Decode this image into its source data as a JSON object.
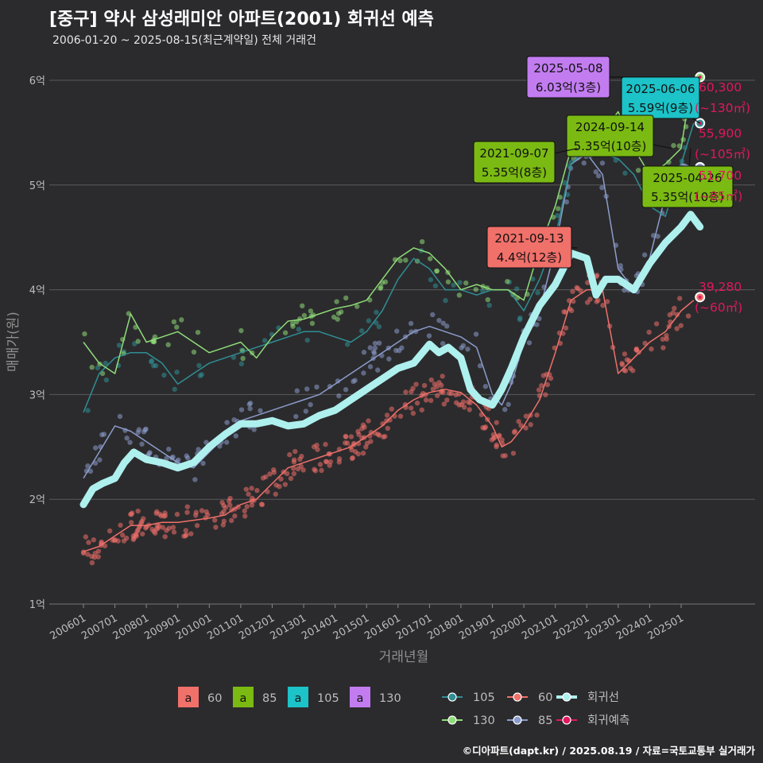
{
  "header": {
    "title": "[중구] 약사 삼성래미안 아파트(2001) 회귀선 예측",
    "subtitle": "2006-01-20 ~ 2025-08-15(최근계약일) 전체 거래건",
    "caption": "©디아파트(dapt.kr) / 2025.08.19 / 자료=국토교통부 실거래가"
  },
  "colors": {
    "background": "#2b2b2d",
    "grid": "#5a5a5a",
    "s60": "#f0706a",
    "s85": "#8c9ccc",
    "s105": "#2f8f94",
    "s130": "#8fdc78",
    "regression": "#aef0ee",
    "forecast": "#e0185c"
  },
  "chart_data": {
    "type": "scatter",
    "title": "[중구] 약사 삼성래미안 아파트(2001) 회귀선 예측",
    "xlabel": "거래년월",
    "ylabel": "매매가(원)",
    "xlim": [
      2005.6,
      2026.5
    ],
    "ylim": [
      1,
      6.25
    ],
    "y_ticks": [
      {
        "v": 1,
        "label": "1억"
      },
      {
        "v": 2,
        "label": "2억"
      },
      {
        "v": 3,
        "label": "3억"
      },
      {
        "v": 4,
        "label": "4억"
      },
      {
        "v": 5,
        "label": "5억"
      },
      {
        "v": 6,
        "label": "6억"
      }
    ],
    "x_ticks": [
      {
        "v": 2006,
        "label": "200601"
      },
      {
        "v": 2007,
        "label": "200701"
      },
      {
        "v": 2008,
        "label": "200801"
      },
      {
        "v": 2009,
        "label": "200901"
      },
      {
        "v": 2010,
        "label": "201001"
      },
      {
        "v": 2011,
        "label": "201101"
      },
      {
        "v": 2012,
        "label": "201201"
      },
      {
        "v": 2013,
        "label": "201301"
      },
      {
        "v": 2014,
        "label": "201401"
      },
      {
        "v": 2015,
        "label": "201501"
      },
      {
        "v": 2016,
        "label": "201601"
      },
      {
        "v": 2017,
        "label": "201701"
      },
      {
        "v": 2018,
        "label": "201801"
      },
      {
        "v": 2019,
        "label": "201901"
      },
      {
        "v": 2020,
        "label": "202001"
      },
      {
        "v": 2021,
        "label": "202101"
      },
      {
        "v": 2022,
        "label": "202201"
      },
      {
        "v": 2023,
        "label": "202301"
      },
      {
        "v": 2024,
        "label": "202401"
      },
      {
        "v": 2025,
        "label": "202501"
      }
    ],
    "grid": true,
    "series": [
      {
        "name": "60",
        "key": "s60",
        "color": "#f0706a",
        "x": [
          2006.0,
          2006.5,
          2007.0,
          2007.5,
          2008.0,
          2008.5,
          2009.0,
          2009.5,
          2010.0,
          2010.5,
          2011.0,
          2011.5,
          2012.0,
          2012.5,
          2013.0,
          2013.5,
          2014.0,
          2014.5,
          2015.0,
          2015.5,
          2016.0,
          2016.5,
          2017.0,
          2017.5,
          2018.0,
          2018.5,
          2019.0,
          2019.3,
          2019.6,
          2020.0,
          2020.5,
          2021.0,
          2021.5,
          2022.0,
          2022.5,
          2023.0,
          2023.5,
          2024.0,
          2024.5,
          2025.0,
          2025.4
        ],
        "y": [
          1.5,
          1.55,
          1.65,
          1.75,
          1.75,
          1.78,
          1.78,
          1.8,
          1.82,
          1.85,
          1.95,
          2.0,
          2.15,
          2.3,
          2.35,
          2.4,
          2.45,
          2.5,
          2.6,
          2.7,
          2.85,
          2.95,
          3.02,
          3.05,
          3.02,
          2.9,
          2.7,
          2.5,
          2.55,
          2.7,
          2.95,
          3.4,
          3.9,
          4.0,
          4.0,
          3.2,
          3.35,
          3.5,
          3.6,
          3.8,
          3.9
        ]
      },
      {
        "name": "85",
        "key": "s85",
        "color": "#8c9ccc",
        "x": [
          2006.0,
          2006.5,
          2007.0,
          2007.5,
          2008.0,
          2008.5,
          2009.0,
          2009.5,
          2010.0,
          2010.5,
          2011.0,
          2011.5,
          2012.0,
          2012.5,
          2013.0,
          2013.5,
          2014.0,
          2014.5,
          2015.0,
          2015.5,
          2016.0,
          2016.5,
          2017.0,
          2017.5,
          2018.0,
          2018.5,
          2019.0,
          2019.3,
          2019.6,
          2020.0,
          2020.5,
          2021.0,
          2021.5,
          2022.0,
          2022.5,
          2023.0,
          2023.5,
          2024.0,
          2024.5,
          2025.0,
          2025.4
        ],
        "y": [
          2.2,
          2.45,
          2.7,
          2.65,
          2.55,
          2.45,
          2.35,
          2.3,
          2.45,
          2.6,
          2.75,
          2.8,
          2.85,
          2.9,
          2.95,
          3.0,
          3.1,
          3.2,
          3.3,
          3.4,
          3.5,
          3.6,
          3.65,
          3.6,
          3.55,
          3.45,
          3.0,
          2.9,
          3.1,
          3.5,
          3.8,
          4.4,
          5.2,
          5.3,
          5.1,
          4.2,
          4.0,
          4.3,
          4.9,
          5.2,
          5.17
        ]
      },
      {
        "name": "105",
        "key": "s105",
        "color": "#2f8f94",
        "x": [
          2006.0,
          2006.5,
          2007.0,
          2007.5,
          2008.0,
          2008.5,
          2009.0,
          2009.5,
          2010.0,
          2010.5,
          2011.0,
          2011.5,
          2012.0,
          2012.5,
          2013.0,
          2013.5,
          2014.0,
          2014.5,
          2015.0,
          2015.5,
          2016.0,
          2016.5,
          2017.0,
          2017.5,
          2018.0,
          2018.5,
          2019.0,
          2019.5,
          2020.0,
          2020.5,
          2021.0,
          2021.5,
          2022.0,
          2022.5,
          2023.0,
          2023.5,
          2024.0,
          2024.5,
          2025.0,
          2025.4
        ],
        "y": [
          2.83,
          3.2,
          3.35,
          3.4,
          3.4,
          3.3,
          3.1,
          3.2,
          3.3,
          3.35,
          3.4,
          3.45,
          3.5,
          3.55,
          3.6,
          3.6,
          3.55,
          3.5,
          3.6,
          3.8,
          4.1,
          4.3,
          4.2,
          4.0,
          4.0,
          3.95,
          4.0,
          4.0,
          3.8,
          4.1,
          4.5,
          5.2,
          5.35,
          5.3,
          5.25,
          5.1,
          4.8,
          4.7,
          5.2,
          5.59
        ]
      },
      {
        "name": "130",
        "key": "s130",
        "color": "#8fdc78",
        "x": [
          2006.0,
          2006.5,
          2007.0,
          2007.5,
          2008.0,
          2008.5,
          2009.0,
          2009.5,
          2010.0,
          2010.5,
          2011.0,
          2011.5,
          2012.0,
          2012.5,
          2013.0,
          2014.0,
          2014.5,
          2015.0,
          2015.5,
          2016.0,
          2016.5,
          2017.0,
          2017.5,
          2018.0,
          2018.5,
          2019.0,
          2019.5,
          2020.0,
          2020.5,
          2021.0,
          2021.5,
          2022.0,
          2022.5,
          2023.0,
          2023.5,
          2024.0,
          2024.5,
          2025.0,
          2025.35
        ],
        "y": [
          3.5,
          3.3,
          3.2,
          3.77,
          3.5,
          3.55,
          3.6,
          3.5,
          3.4,
          3.45,
          3.5,
          3.35,
          3.55,
          3.7,
          3.72,
          3.82,
          3.85,
          3.9,
          4.1,
          4.3,
          4.4,
          4.35,
          4.2,
          4.0,
          4.05,
          4.0,
          4.0,
          3.9,
          4.4,
          4.8,
          5.35,
          5.4,
          5.5,
          5.7,
          5.35,
          5.1,
          5.2,
          5.35,
          6.03
        ]
      },
      {
        "name": "회귀선",
        "key": "reg",
        "color": "#aef0ee",
        "x": [
          2006.0,
          2006.3,
          2006.6,
          2007.0,
          2007.3,
          2007.6,
          2008.0,
          2008.5,
          2009.0,
          2009.5,
          2010.0,
          2010.5,
          2011.0,
          2011.5,
          2012.0,
          2012.5,
          2013.0,
          2013.5,
          2014.0,
          2014.5,
          2015.0,
          2015.5,
          2016.0,
          2016.5,
          2017.0,
          2017.3,
          2017.6,
          2018.0,
          2018.3,
          2018.6,
          2019.0,
          2019.3,
          2019.6,
          2020.0,
          2020.5,
          2021.0,
          2021.5,
          2022.0,
          2022.3,
          2022.6,
          2023.0,
          2023.5,
          2024.0,
          2024.5,
          2025.0,
          2025.3,
          2025.6
        ],
        "y": [
          1.95,
          2.1,
          2.15,
          2.2,
          2.35,
          2.45,
          2.38,
          2.35,
          2.3,
          2.35,
          2.5,
          2.62,
          2.72,
          2.72,
          2.75,
          2.7,
          2.72,
          2.8,
          2.85,
          2.95,
          3.05,
          3.15,
          3.25,
          3.3,
          3.48,
          3.4,
          3.45,
          3.35,
          3.05,
          2.95,
          2.9,
          3.05,
          3.25,
          3.55,
          3.85,
          4.05,
          4.35,
          4.3,
          3.95,
          4.1,
          4.1,
          4.0,
          4.25,
          4.45,
          4.6,
          4.72,
          4.6
        ]
      },
      {
        "name": "회귀예측",
        "key": "fc",
        "color": "#e0185c",
        "x": [
          2025.6,
          2025.6,
          2025.6,
          2025.6
        ],
        "y": [
          3.93,
          5.17,
          5.59,
          6.03
        ]
      }
    ],
    "annotations": [
      {
        "date": "2025-05-08",
        "value": "6.03억(3층)",
        "fill": "#c27cf0"
      },
      {
        "date": "2025-06-06",
        "value": "5.59억(9층)",
        "fill": "#1cc3c8"
      },
      {
        "date": "2024-09-14",
        "value": "5.35억(10층)",
        "fill": "#7aba12"
      },
      {
        "date": "2021-09-07",
        "value": "5.35억(8층)",
        "fill": "#7aba12"
      },
      {
        "date": "2025-04-26",
        "value": "5.35억(10층)",
        "fill": "#7aba12"
      },
      {
        "date": "2021-09-13",
        "value": "4.4억(12층)",
        "fill": "#f0706a"
      }
    ],
    "forecast_labels": [
      {
        "price": "60,300",
        "area": "(~130㎡)"
      },
      {
        "price": "55,900",
        "area": "(~105㎡)"
      },
      {
        "price": "51,700",
        "area": "(~85㎡)"
      },
      {
        "price": "39,280",
        "area": "(~60㎡)"
      }
    ],
    "legend_placement": "bottom",
    "legend_fill": {
      "items": [
        {
          "key": "a",
          "label": "60",
          "color": "#f0706a"
        },
        {
          "key": "a",
          "label": "85",
          "color": "#7aba12"
        },
        {
          "key": "a",
          "label": "105",
          "color": "#1cc3c8"
        },
        {
          "key": "a",
          "label": "130",
          "color": "#c27cf0"
        }
      ]
    },
    "legend_line": {
      "items": [
        {
          "label": "105",
          "color": "#2f8f94"
        },
        {
          "label": "60",
          "color": "#f0706a"
        },
        {
          "label": "회귀선",
          "color": "#aef0ee"
        },
        {
          "label": "130",
          "color": "#8fdc78"
        },
        {
          "label": "85",
          "color": "#8c9ccc"
        },
        {
          "label": "회귀예측",
          "color": "#e0185c"
        }
      ]
    }
  }
}
